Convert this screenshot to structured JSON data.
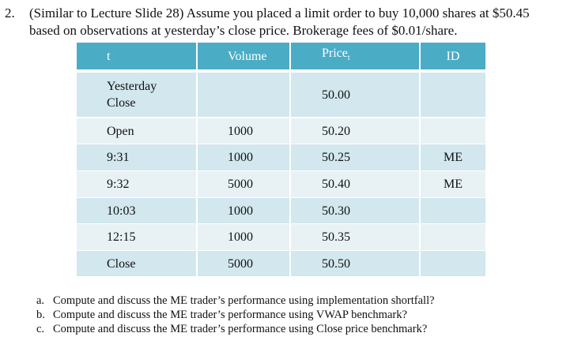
{
  "question": {
    "number": "2.",
    "lines": [
      "(Similar to Lecture Slide 28) Assume you placed a limit order to buy 10,000 shares at $50.45",
      "based on observations at yesterday’s close price. Brokerage fees of $0.01/share."
    ]
  },
  "table": {
    "header": [
      "t",
      "Volume",
      {
        "text": "Price",
        "sub": "t"
      },
      "ID"
    ],
    "rows": [
      [
        "Yesterday\nClose",
        null,
        "50.00",
        null
      ],
      [
        "Open",
        "1000",
        "50.20",
        null
      ],
      [
        "9:31",
        "1000",
        "50.25",
        "ME"
      ],
      [
        "9:32",
        "5000",
        "50.40",
        "ME"
      ],
      [
        "10:03",
        "1000",
        "50.30",
        null
      ],
      [
        "12:15",
        "1000",
        "50.35",
        null
      ],
      [
        "Close",
        "5000",
        "50.50",
        null
      ]
    ]
  },
  "tasks": [
    {
      "marker": "a.",
      "text": "Compute and discuss the ME trader’s performance using implementation shortfall?"
    },
    {
      "marker": "b.",
      "text": "Compute and discuss the ME trader’s performance using VWAP benchmark?"
    },
    {
      "marker": "c.",
      "text": "Compute and discuss the ME trader’s performance using Close price benchmark?"
    }
  ]
}
